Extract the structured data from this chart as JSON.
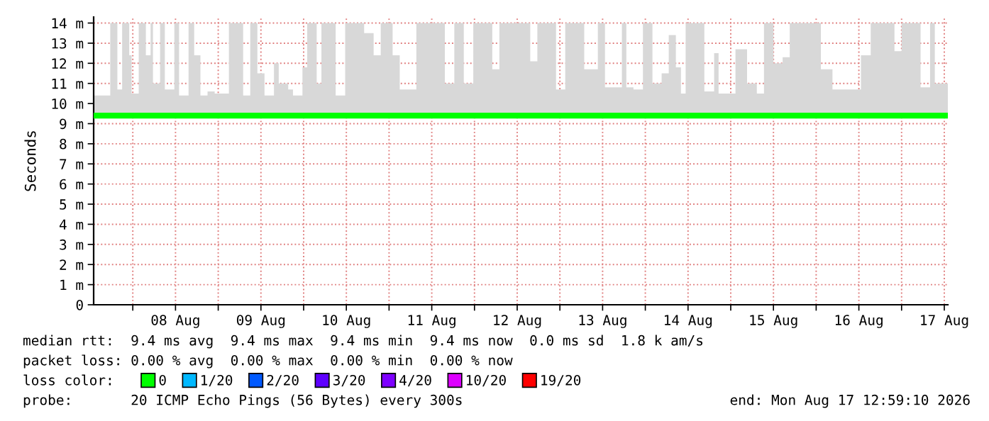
{
  "chart_data": {
    "type": "step",
    "ylabel": "Seconds",
    "legend_title": "loss color:",
    "legend": "bottom",
    "grid": true,
    "marker": "none",
    "annotations": [
      "median rtt:  9.4 ms avg  9.4 ms max  9.4 ms min  9.4 ms now  0.0 ms sd  1.8 k am/s",
      "packet loss: 0.00 % avg  0.00 % max  0.00 % min  0.00 % now",
      "probe:       20 ICMP Echo Pings (56 Bytes) every 300s",
      "end: Mon Aug 17 12:59:10 2026"
    ],
    "xlim": [
      "2026-08-07T13:00",
      "2026-08-17T13:00"
    ],
    "xticks": [
      {
        "value": "2026-08-08T00:00",
        "label": null
      },
      {
        "value": "2026-08-08T12:00",
        "label": "08 Aug"
      },
      {
        "value": "2026-08-09T00:00",
        "label": null
      },
      {
        "value": "2026-08-09T12:00",
        "label": "09 Aug"
      },
      {
        "value": "2026-08-10T00:00",
        "label": null
      },
      {
        "value": "2026-08-10T12:00",
        "label": "10 Aug"
      },
      {
        "value": "2026-08-11T00:00",
        "label": null
      },
      {
        "value": "2026-08-11T12:00",
        "label": "11 Aug"
      },
      {
        "value": "2026-08-12T00:00",
        "label": null
      },
      {
        "value": "2026-08-12T12:00",
        "label": "12 Aug"
      },
      {
        "value": "2026-08-13T00:00",
        "label": null
      },
      {
        "value": "2026-08-13T12:00",
        "label": "13 Aug"
      },
      {
        "value": "2026-08-14T00:00",
        "label": null
      },
      {
        "value": "2026-08-14T12:00",
        "label": "14 Aug"
      },
      {
        "value": "2026-08-15T00:00",
        "label": null
      },
      {
        "value": "2026-08-15T12:00",
        "label": "15 Aug"
      },
      {
        "value": "2026-08-16T00:00",
        "label": null
      },
      {
        "value": "2026-08-16T12:00",
        "label": "16 Aug"
      },
      {
        "value": "2026-08-17T00:00",
        "label": null
      },
      {
        "value": "2026-08-17T12:00",
        "label": "17 Aug"
      }
    ],
    "ylim": [
      0,
      14.3
    ],
    "yticks": [
      0,
      {
        "value": 1,
        "label": "1 m"
      },
      {
        "value": 2,
        "label": "2 m"
      },
      {
        "value": 3,
        "label": "3 m"
      },
      {
        "value": 4,
        "label": "4 m"
      },
      {
        "value": 5,
        "label": "5 m"
      },
      {
        "value": 6,
        "label": "6 m"
      },
      {
        "value": 7,
        "label": "7 m"
      },
      {
        "value": 8,
        "label": "8 m"
      },
      {
        "value": 9,
        "label": "9 m"
      },
      {
        "value": 10,
        "label": "10 m"
      },
      {
        "value": 11,
        "label": "11 m"
      },
      {
        "value": 12,
        "label": "12 m"
      },
      {
        "value": 13,
        "label": "13 m"
      },
      {
        "value": 14,
        "label": "14 m"
      }
    ],
    "x": [
      "2026-08-07T13:00",
      "2026-08-07T17:40",
      "2026-08-07T19:40",
      "2026-08-07T21:00",
      "2026-08-07T23:00",
      "2026-08-07T23:40",
      "2026-08-08T01:40",
      "2026-08-08T03:40",
      "2026-08-08T05:00",
      "2026-08-08T05:40",
      "2026-08-08T07:40",
      "2026-08-08T09:00",
      "2026-08-08T11:40",
      "2026-08-08T13:00",
      "2026-08-08T15:40",
      "2026-08-08T17:15",
      "2026-08-08T19:00",
      "2026-08-08T21:00",
      "2026-08-08T23:00",
      "2026-08-09T03:00",
      "2026-08-09T07:00",
      "2026-08-09T09:00",
      "2026-08-09T11:00",
      "2026-08-09T13:00",
      "2026-08-09T15:40",
      "2026-08-09T17:00",
      "2026-08-09T19:40",
      "2026-08-09T21:00",
      "2026-08-09T23:40",
      "2026-08-10T01:00",
      "2026-08-10T03:40",
      "2026-08-10T05:00",
      "2026-08-10T09:00",
      "2026-08-10T11:40",
      "2026-08-10T17:00",
      "2026-08-10T19:40",
      "2026-08-10T21:40",
      "2026-08-11T01:00",
      "2026-08-11T03:00",
      "2026-08-11T07:40",
      "2026-08-11T15:40",
      "2026-08-11T18:20",
      "2026-08-11T21:00",
      "2026-08-11T23:40",
      "2026-08-12T05:00",
      "2026-08-12T07:00",
      "2026-08-12T15:40",
      "2026-08-12T17:40",
      "2026-08-12T22:55",
      "2026-08-13T01:30",
      "2026-08-13T06:50",
      "2026-08-13T10:40",
      "2026-08-13T12:40",
      "2026-08-13T17:25",
      "2026-08-13T18:40",
      "2026-08-13T20:40",
      "2026-08-13T23:20",
      "2026-08-14T02:00",
      "2026-08-14T04:35",
      "2026-08-14T06:35",
      "2026-08-14T08:35",
      "2026-08-14T10:00",
      "2026-08-14T11:20",
      "2026-08-14T16:35",
      "2026-08-14T19:20",
      "2026-08-14T20:35",
      "2026-08-15T01:20",
      "2026-08-15T04:35",
      "2026-08-15T07:20",
      "2026-08-15T09:20",
      "2026-08-15T12:00",
      "2026-08-15T14:35",
      "2026-08-15T16:35",
      "2026-08-16T01:20",
      "2026-08-16T04:35",
      "2026-08-16T12:35",
      "2026-08-16T15:20",
      "2026-08-16T22:00",
      "2026-08-17T00:00",
      "2026-08-17T05:20",
      "2026-08-17T08:00",
      "2026-08-17T09:20",
      "2026-08-17T13:00"
    ],
    "series": [
      {
        "name": "0",
        "color": "#00ff00",
        "values": [
          9.4,
          9.4,
          9.4,
          9.4,
          9.4,
          9.4,
          9.4,
          9.4,
          9.4,
          9.4,
          9.4,
          9.4,
          9.4,
          9.4,
          9.4,
          9.4,
          9.4,
          9.4,
          9.4,
          9.4,
          9.4,
          9.4,
          9.4,
          9.4,
          9.4,
          9.4,
          9.4,
          9.4,
          9.4,
          9.4,
          9.4,
          9.4,
          9.4,
          9.4,
          9.4,
          9.4,
          9.4,
          9.4,
          9.4,
          9.4,
          9.4,
          9.4,
          9.4,
          9.4,
          9.4,
          9.4,
          9.4,
          9.4,
          9.4,
          9.4,
          9.4,
          9.4,
          9.4,
          9.4,
          9.4,
          9.4,
          9.4,
          9.4,
          9.4,
          9.4,
          9.4,
          9.4,
          9.4,
          9.4,
          9.4,
          9.4,
          9.4,
          9.4,
          9.4,
          9.4,
          9.4,
          9.4,
          9.4,
          9.4,
          9.4,
          9.4,
          9.4,
          9.4,
          9.4,
          9.4,
          9.4,
          9.4,
          9.4
        ],
        "lower": [
          9.3,
          9.3,
          9.3,
          9.3,
          9.3,
          9.3,
          9.3,
          9.3,
          9.3,
          9.3,
          9.3,
          9.3,
          9.3,
          9.3,
          9.3,
          9.3,
          9.3,
          9.3,
          9.3,
          9.3,
          9.3,
          9.3,
          9.3,
          9.3,
          9.3,
          9.3,
          9.3,
          9.3,
          9.3,
          9.3,
          9.3,
          9.3,
          9.3,
          9.3,
          9.3,
          9.3,
          9.3,
          9.3,
          9.3,
          9.3,
          9.3,
          9.3,
          9.3,
          9.3,
          9.3,
          9.3,
          9.3,
          9.3,
          9.3,
          9.3,
          9.3,
          9.3,
          9.3,
          9.3,
          9.3,
          9.3,
          9.3,
          9.3,
          9.3,
          9.3,
          9.3,
          9.3,
          9.3,
          9.3,
          9.3,
          9.3,
          9.3,
          9.3,
          9.3,
          9.3,
          9.3,
          9.3,
          9.3,
          9.3,
          9.3,
          9.3,
          9.3,
          9.3,
          9.3,
          9.3,
          9.3,
          9.3,
          9.3
        ],
        "upper": [
          10.4,
          14,
          10.7,
          14,
          12.4,
          10.5,
          14,
          12.4,
          14,
          11,
          14,
          10.7,
          14,
          10.4,
          14,
          12.4,
          10.4,
          10.6,
          10.5,
          14,
          10.4,
          14,
          11.5,
          10.4,
          12,
          11,
          10.7,
          10.4,
          11.8,
          14,
          11,
          14,
          10.4,
          14,
          13.5,
          12.4,
          14,
          12.4,
          10.7,
          14,
          11,
          14,
          11,
          14,
          11.7,
          14,
          12.1,
          14,
          10.7,
          14,
          11.7,
          14,
          10.8,
          14,
          10.8,
          10.7,
          14,
          11,
          11.5,
          13.4,
          11.8,
          10.5,
          14,
          10.6,
          12.5,
          10.5,
          12.7,
          11,
          10.5,
          14,
          12,
          12.3,
          14,
          11.7,
          10.7,
          12.4,
          14,
          12.6,
          14,
          10.8,
          14,
          11,
          11
        ]
      },
      {
        "name": "1/20",
        "color": "#00b8ff",
        "values": [
          null,
          null,
          null,
          null,
          null,
          null,
          null,
          null,
          null,
          null,
          null,
          null,
          null,
          null,
          null,
          null,
          null,
          null,
          null,
          null,
          null,
          null,
          null,
          null,
          null,
          null,
          null,
          null,
          null,
          null,
          null,
          null,
          null,
          null,
          null,
          null,
          null,
          null,
          null,
          null,
          null,
          null,
          null,
          null,
          null,
          null,
          null,
          null,
          null,
          null,
          null,
          null,
          null,
          null,
          null,
          null,
          null,
          null,
          null,
          null,
          null,
          null,
          null,
          null,
          null,
          null,
          null,
          null,
          null,
          null,
          null,
          null,
          null,
          null,
          null,
          null,
          null,
          null,
          null,
          null,
          null,
          null,
          null
        ]
      },
      {
        "name": "2/20",
        "color": "#0059ff",
        "values": [
          null,
          null,
          null,
          null,
          null,
          null,
          null,
          null,
          null,
          null,
          null,
          null,
          null,
          null,
          null,
          null,
          null,
          null,
          null,
          null,
          null,
          null,
          null,
          null,
          null,
          null,
          null,
          null,
          null,
          null,
          null,
          null,
          null,
          null,
          null,
          null,
          null,
          null,
          null,
          null,
          null,
          null,
          null,
          null,
          null,
          null,
          null,
          null,
          null,
          null,
          null,
          null,
          null,
          null,
          null,
          null,
          null,
          null,
          null,
          null,
          null,
          null,
          null,
          null,
          null,
          null,
          null,
          null,
          null,
          null,
          null,
          null,
          null,
          null,
          null,
          null,
          null,
          null,
          null,
          null,
          null,
          null,
          null
        ]
      },
      {
        "name": "3/20",
        "color": "#5e00ff",
        "values": [
          null,
          null,
          null,
          null,
          null,
          null,
          null,
          null,
          null,
          null,
          null,
          null,
          null,
          null,
          null,
          null,
          null,
          null,
          null,
          null,
          null,
          null,
          null,
          null,
          null,
          null,
          null,
          null,
          null,
          null,
          null,
          null,
          null,
          null,
          null,
          null,
          null,
          null,
          null,
          null,
          null,
          null,
          null,
          null,
          null,
          null,
          null,
          null,
          null,
          null,
          null,
          null,
          null,
          null,
          null,
          null,
          null,
          null,
          null,
          null,
          null,
          null,
          null,
          null,
          null,
          null,
          null,
          null,
          null,
          null,
          null,
          null,
          null,
          null,
          null,
          null,
          null,
          null,
          null,
          null,
          null,
          null,
          null
        ]
      },
      {
        "name": "4/20",
        "color": "#7e00ff",
        "values": [
          null,
          null,
          null,
          null,
          null,
          null,
          null,
          null,
          null,
          null,
          null,
          null,
          null,
          null,
          null,
          null,
          null,
          null,
          null,
          null,
          null,
          null,
          null,
          null,
          null,
          null,
          null,
          null,
          null,
          null,
          null,
          null,
          null,
          null,
          null,
          null,
          null,
          null,
          null,
          null,
          null,
          null,
          null,
          null,
          null,
          null,
          null,
          null,
          null,
          null,
          null,
          null,
          null,
          null,
          null,
          null,
          null,
          null,
          null,
          null,
          null,
          null,
          null,
          null,
          null,
          null,
          null,
          null,
          null,
          null,
          null,
          null,
          null,
          null,
          null,
          null,
          null,
          null,
          null,
          null,
          null,
          null,
          null
        ]
      },
      {
        "name": "10/20",
        "color": "#dd00ff",
        "values": [
          null,
          null,
          null,
          null,
          null,
          null,
          null,
          null,
          null,
          null,
          null,
          null,
          null,
          null,
          null,
          null,
          null,
          null,
          null,
          null,
          null,
          null,
          null,
          null,
          null,
          null,
          null,
          null,
          null,
          null,
          null,
          null,
          null,
          null,
          null,
          null,
          null,
          null,
          null,
          null,
          null,
          null,
          null,
          null,
          null,
          null,
          null,
          null,
          null,
          null,
          null,
          null,
          null,
          null,
          null,
          null,
          null,
          null,
          null,
          null,
          null,
          null,
          null,
          null,
          null,
          null,
          null,
          null,
          null,
          null,
          null,
          null,
          null,
          null,
          null,
          null,
          null,
          null,
          null,
          null,
          null,
          null,
          null
        ]
      },
      {
        "name": "19/20",
        "color": "#ff0000",
        "values": [
          null,
          null,
          null,
          null,
          null,
          null,
          null,
          null,
          null,
          null,
          null,
          null,
          null,
          null,
          null,
          null,
          null,
          null,
          null,
          null,
          null,
          null,
          null,
          null,
          null,
          null,
          null,
          null,
          null,
          null,
          null,
          null,
          null,
          null,
          null,
          null,
          null,
          null,
          null,
          null,
          null,
          null,
          null,
          null,
          null,
          null,
          null,
          null,
          null,
          null,
          null,
          null,
          null,
          null,
          null,
          null,
          null,
          null,
          null,
          null,
          null,
          null,
          null,
          null,
          null,
          null,
          null,
          null,
          null,
          null,
          null,
          null,
          null,
          null,
          null,
          null,
          null,
          null,
          null,
          null,
          null,
          null,
          null
        ]
      }
    ]
  }
}
